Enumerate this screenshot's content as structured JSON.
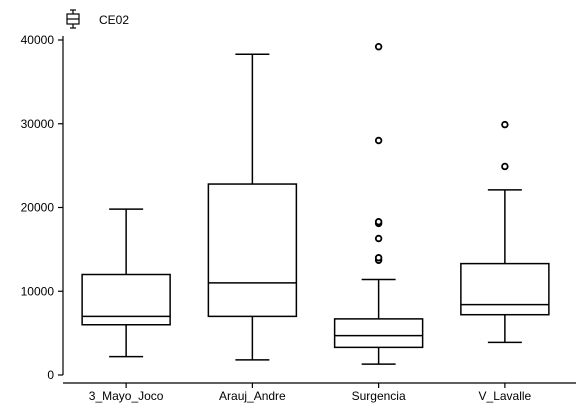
{
  "chart_data": {
    "type": "box",
    "legend": {
      "label": "CE02",
      "icon": "boxplot-icon",
      "placement": "top-left"
    },
    "ylim": [
      0,
      40000
    ],
    "yticks": [
      0,
      10000,
      20000,
      30000,
      40000
    ],
    "categories": [
      "3_Mayo_Joco",
      "Arauj_Andre",
      "Surgencia",
      "V_Lavalle"
    ],
    "boxes": [
      {
        "category": "3_Mayo_Joco",
        "min": 2200,
        "q1": 6000,
        "median": 7000,
        "q3": 12000,
        "max": 19800,
        "outliers": []
      },
      {
        "category": "Arauj_Andre",
        "min": 1800,
        "q1": 7000,
        "median": 11000,
        "q3": 22800,
        "max": 38300,
        "outliers": []
      },
      {
        "category": "Surgencia",
        "min": 1300,
        "q1": 3300,
        "median": 4700,
        "q3": 6700,
        "max": 11400,
        "outliers": [
          13700,
          14000,
          16300,
          18100,
          18300,
          28000,
          39200
        ]
      },
      {
        "category": "V_Lavalle",
        "min": 3900,
        "q1": 7200,
        "median": 8400,
        "q3": 13300,
        "max": 22100,
        "outliers": [
          24900,
          29900
        ]
      }
    ],
    "grid": false,
    "colors": {
      "stroke": "#000000",
      "fill": "#ffffff"
    }
  }
}
